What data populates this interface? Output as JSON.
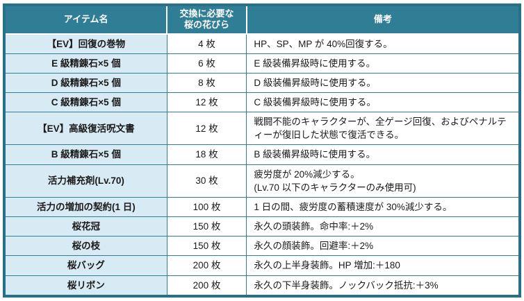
{
  "colors": {
    "header_bg": "#307d96",
    "outer_border": "#27708a",
    "grid_line": "#307d96",
    "row_bg_item": "#d8eaf4",
    "header_text": "#ffffff",
    "body_text": "#1a1a1a"
  },
  "table": {
    "headers": {
      "item": "アイテム名",
      "petals": "交換に必要な\n桜の花びら",
      "remark": "備考"
    },
    "rows": [
      {
        "item": "【EV】回復の巻物",
        "petals": "4 枚",
        "remark": "HP、SP、MP が 40%回復する。"
      },
      {
        "item": "E 級精錬石×5 個",
        "petals": "6 枚",
        "remark": "E 級装備昇級時に使用する。"
      },
      {
        "item": "D 級精錬石×5 個",
        "petals": "8 枚",
        "remark": "D 級装備昇級時に使用する。"
      },
      {
        "item": "C 級精錬石×5 個",
        "petals": "12 枚",
        "remark": "C 級装備昇級時に使用する。"
      },
      {
        "item": "【EV】高級復活呪文書",
        "petals": "12 枚",
        "remark": "戦闘不能のキャラクターが、全ゲージ回復、およびペナルティーが復旧した状態で復活できる。"
      },
      {
        "item": "B 級精錬石×5 個",
        "petals": "18 枚",
        "remark": "B 級装備昇級時に使用する。"
      },
      {
        "item": "活力補充剤(Lv.70)",
        "petals": "30 枚",
        "remark": "疲労度が 20%減少する。\n(Lv.70 以下のキャラクターのみ使用可)"
      },
      {
        "item": "活力の増加の契約(1 日)",
        "petals": "100 枚",
        "remark": "1 日の間、疲労度の蓄積速度が 30%減少する。"
      },
      {
        "item": "桜花冠",
        "petals": "150 枚",
        "remark": "永久の頭装飾。命中率:＋2%"
      },
      {
        "item": "桜の枝",
        "petals": "150 枚",
        "remark": "永久の顔装飾。回避率:＋2%"
      },
      {
        "item": "桜バッグ",
        "petals": "200 枚",
        "remark": "永久の上半身装飾。HP 増加:＋180"
      },
      {
        "item": "桜リボン",
        "petals": "200 枚",
        "remark": "永久の下半身装飾。ノックバック抵抗:＋3%"
      }
    ]
  }
}
